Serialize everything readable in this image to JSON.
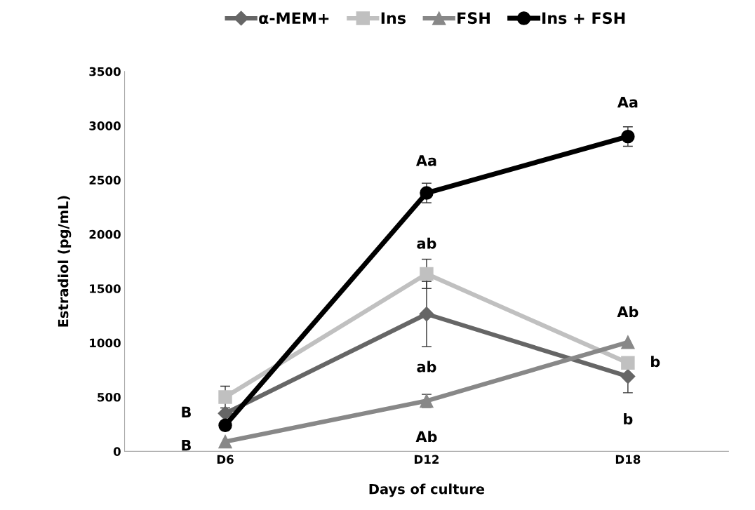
{
  "chart_data": {
    "type": "line",
    "xlabel": "Days of culture",
    "ylabel": "Estradiol (pg/mL)",
    "categories": [
      "D6",
      "D12",
      "D18"
    ],
    "series": [
      {
        "name": "α-MEM+",
        "color": "#666666",
        "marker": "diamond",
        "values": [
          350,
          1265,
          690
        ],
        "errors": [
          null,
          300,
          150
        ]
      },
      {
        "name": "Ins",
        "color": "#c0c0c0",
        "marker": "square",
        "values": [
          500,
          1635,
          815
        ],
        "errors": [
          100,
          135,
          null
        ]
      },
      {
        "name": "FSH",
        "color": "#888888",
        "marker": "triangle",
        "values": [
          90,
          465,
          1005
        ],
        "errors": [
          null,
          60,
          null
        ]
      },
      {
        "name": "Ins + FSH",
        "color": "#000000",
        "marker": "circle",
        "values": [
          240,
          2380,
          2900
        ],
        "errors": [
          null,
          90,
          90
        ]
      }
    ],
    "ylim": [
      0,
      3500
    ],
    "yticks": [
      0,
      500,
      1000,
      1500,
      2000,
      2500,
      3000,
      3500
    ],
    "grid": false,
    "legend": "top",
    "annotations": [
      {
        "text": "B",
        "x": "D6",
        "y": 350
      },
      {
        "text": "B",
        "x": "D6",
        "y": 90
      },
      {
        "text": "Aa",
        "x": "D12",
        "y": 2380
      },
      {
        "text": "ab",
        "x": "D12",
        "y": 1635
      },
      {
        "text": "ab",
        "x": "D12",
        "y": 965
      },
      {
        "text": "Ab",
        "x": "D12",
        "y": 465
      },
      {
        "text": "Aa",
        "x": "D18",
        "y": 2900
      },
      {
        "text": "Ab",
        "x": "D18",
        "y": 1005
      },
      {
        "text": "b",
        "x": "D18",
        "y": 815
      },
      {
        "text": "b",
        "x": "D18",
        "y": 690
      }
    ]
  }
}
